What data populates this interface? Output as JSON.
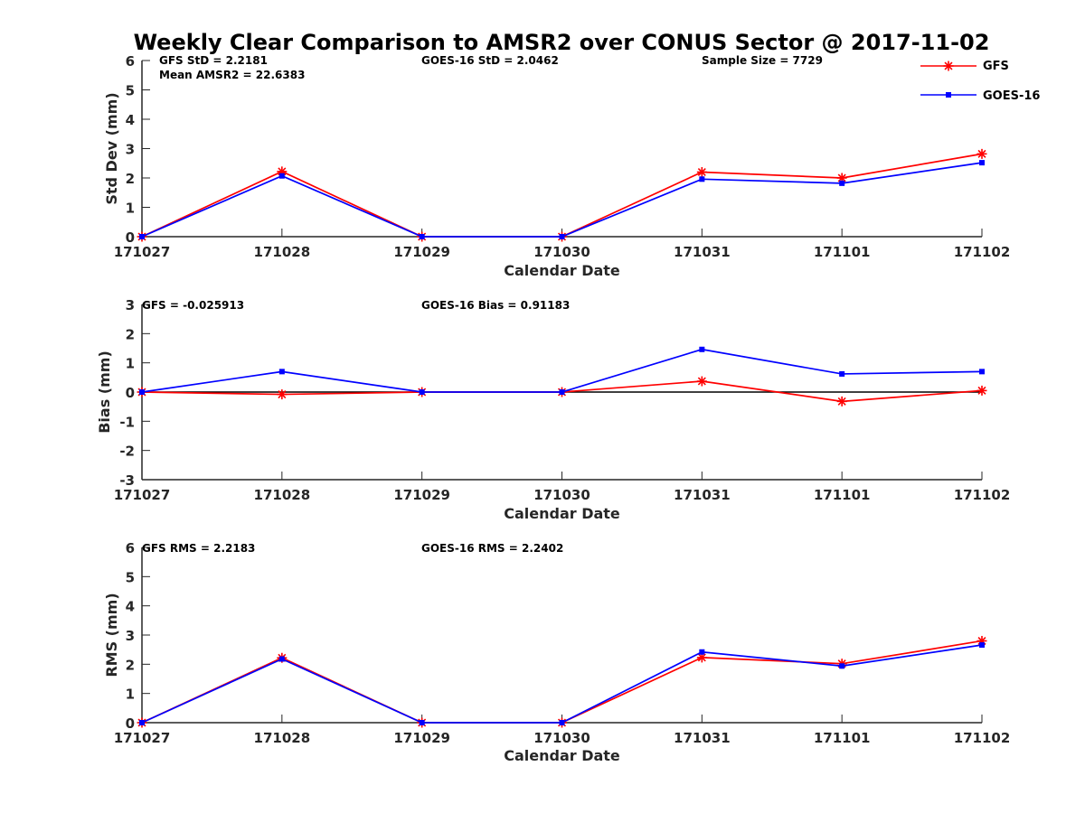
{
  "figure": {
    "title": "Weekly Clear Comparison to AMSR2 over CONUS Sector @ 2017-11-02"
  },
  "legend": {
    "items": [
      {
        "label": "GFS",
        "color": "#ff0000",
        "marker": "asterisk"
      },
      {
        "label": "GOES-16",
        "color": "#0000ff",
        "marker": "square"
      }
    ]
  },
  "chart_data": [
    {
      "type": "line",
      "id": "std",
      "xlabel": "Calendar Date",
      "ylabel": "Std Dev (mm)",
      "categories": [
        "171027",
        "171028",
        "171029",
        "171030",
        "171031",
        "171101",
        "171102"
      ],
      "ylim": [
        0,
        6
      ],
      "yticks": [
        "0",
        "1",
        "2",
        "3",
        "4",
        "5",
        "6"
      ],
      "zero_line": false,
      "series": [
        {
          "name": "GFS",
          "color": "#ff0000",
          "marker": "asterisk",
          "values": [
            0.0,
            2.22,
            0.0,
            0.0,
            2.2,
            2.0,
            2.82
          ]
        },
        {
          "name": "GOES-16",
          "color": "#0000ff",
          "marker": "square",
          "values": [
            0.0,
            2.07,
            0.0,
            0.0,
            1.96,
            1.82,
            2.52
          ]
        }
      ],
      "stats": [
        "GFS StD = 2.2181",
        "Mean AMSR2 = 22.6383",
        "GOES-16 StD = 2.0462",
        "Sample Size = 7729"
      ]
    },
    {
      "type": "line",
      "id": "bias",
      "xlabel": "Calendar Date",
      "ylabel": "Bias (mm)",
      "categories": [
        "171027",
        "171028",
        "171029",
        "171030",
        "171031",
        "171101",
        "171102"
      ],
      "ylim": [
        -3,
        3
      ],
      "yticks": [
        "-3",
        "-2",
        "-1",
        "0",
        "1",
        "2",
        "3"
      ],
      "zero_line": true,
      "series": [
        {
          "name": "GFS",
          "color": "#ff0000",
          "marker": "asterisk",
          "values": [
            0.0,
            -0.08,
            0.0,
            0.0,
            0.37,
            -0.32,
            0.05
          ]
        },
        {
          "name": "GOES-16",
          "color": "#0000ff",
          "marker": "square",
          "values": [
            0.0,
            0.7,
            0.0,
            0.0,
            1.46,
            0.62,
            0.7
          ]
        }
      ],
      "stats": [
        "GFS = -0.025913",
        "GOES-16 Bias  = 0.91183"
      ]
    },
    {
      "type": "line",
      "id": "rms",
      "xlabel": "Calendar Date",
      "ylabel": "RMS (mm)",
      "categories": [
        "171027",
        "171028",
        "171029",
        "171030",
        "171031",
        "171101",
        "171102"
      ],
      "ylim": [
        0,
        6
      ],
      "yticks": [
        "0",
        "1",
        "2",
        "3",
        "4",
        "5",
        "6"
      ],
      "zero_line": false,
      "series": [
        {
          "name": "GFS",
          "color": "#ff0000",
          "marker": "asterisk",
          "values": [
            0.0,
            2.22,
            0.0,
            0.0,
            2.23,
            2.02,
            2.8
          ]
        },
        {
          "name": "GOES-16",
          "color": "#0000ff",
          "marker": "square",
          "values": [
            0.0,
            2.18,
            0.0,
            0.0,
            2.42,
            1.94,
            2.66
          ]
        }
      ],
      "stats": [
        "GFS RMS = 2.2183",
        "GOES-16 RMS = 2.2402"
      ]
    }
  ]
}
